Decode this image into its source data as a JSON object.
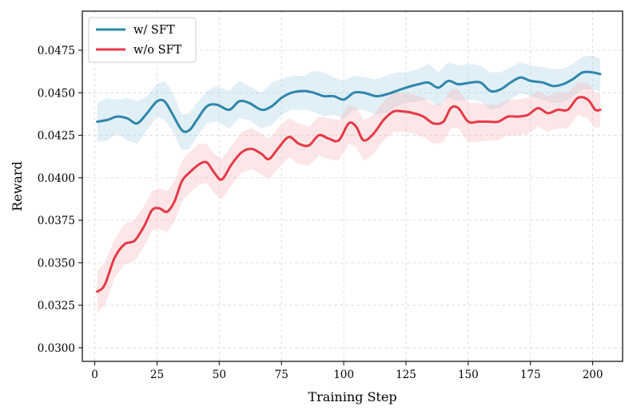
{
  "chart_data": {
    "type": "line",
    "title": "",
    "xlabel": "Training Step",
    "ylabel": "Reward",
    "xlim": [
      -5,
      212
    ],
    "ylim": [
      0.0292,
      0.0498
    ],
    "xticks": [
      0,
      25,
      50,
      75,
      100,
      125,
      150,
      175,
      200
    ],
    "yticks": [
      0.03,
      0.0325,
      0.035,
      0.0375,
      0.04,
      0.0425,
      0.045,
      0.0475
    ],
    "xtick_labels": [
      "0",
      "25",
      "50",
      "75",
      "100",
      "125",
      "150",
      "175",
      "200"
    ],
    "ytick_labels": [
      "0.0300",
      "0.0325",
      "0.0350",
      "0.0375",
      "0.0400",
      "0.0425",
      "0.0450",
      "0.0475"
    ],
    "grid": true,
    "legend_position": "top-left",
    "series": [
      {
        "name": "w/ SFT",
        "color": "#2E86AB",
        "band_color": "#A8D0E6",
        "x": [
          1,
          5,
          9,
          13,
          17,
          21,
          25,
          28,
          31,
          35,
          38,
          41,
          45,
          49,
          54,
          58,
          62,
          67,
          71,
          75,
          79,
          84,
          88,
          92,
          96,
          100,
          104,
          108,
          113,
          117,
          121,
          125,
          130,
          134,
          138,
          142,
          146,
          151,
          155,
          159,
          163,
          167,
          171,
          175,
          180,
          184,
          188,
          192,
          196,
          200,
          203
        ],
        "values": [
          0.0433,
          0.0434,
          0.0436,
          0.0435,
          0.0432,
          0.0438,
          0.0445,
          0.0445,
          0.0438,
          0.0428,
          0.0428,
          0.0434,
          0.0442,
          0.0443,
          0.044,
          0.0445,
          0.0444,
          0.044,
          0.0442,
          0.0447,
          0.045,
          0.0451,
          0.045,
          0.0448,
          0.0448,
          0.0446,
          0.045,
          0.045,
          0.0448,
          0.0449,
          0.0451,
          0.0453,
          0.0455,
          0.0456,
          0.0453,
          0.0457,
          0.0455,
          0.0456,
          0.0456,
          0.0451,
          0.0452,
          0.0456,
          0.0459,
          0.0457,
          0.0456,
          0.0454,
          0.0455,
          0.0458,
          0.0462,
          0.0462,
          0.0461
        ],
        "upper": [
          0.0444,
          0.0447,
          0.0446,
          0.0447,
          0.0445,
          0.0448,
          0.0455,
          0.0457,
          0.0451,
          0.0437,
          0.0438,
          0.0444,
          0.0451,
          0.0454,
          0.0451,
          0.0457,
          0.0454,
          0.045,
          0.0456,
          0.0458,
          0.046,
          0.046,
          0.0463,
          0.0462,
          0.0459,
          0.0457,
          0.046,
          0.0459,
          0.0458,
          0.046,
          0.0462,
          0.0462,
          0.0464,
          0.0467,
          0.0462,
          0.0468,
          0.0466,
          0.0467,
          0.0466,
          0.0462,
          0.0462,
          0.0465,
          0.0468,
          0.0466,
          0.0465,
          0.0464,
          0.0464,
          0.0467,
          0.0471,
          0.0472,
          0.047
        ],
        "lower": [
          0.0421,
          0.0422,
          0.0426,
          0.0422,
          0.042,
          0.0428,
          0.0436,
          0.0434,
          0.0428,
          0.0416,
          0.0417,
          0.0424,
          0.0432,
          0.0433,
          0.0429,
          0.0435,
          0.0434,
          0.0429,
          0.0431,
          0.0437,
          0.044,
          0.044,
          0.0439,
          0.0436,
          0.0437,
          0.0435,
          0.044,
          0.044,
          0.0437,
          0.0438,
          0.0442,
          0.0444,
          0.0445,
          0.0446,
          0.0442,
          0.0447,
          0.0445,
          0.0446,
          0.0445,
          0.044,
          0.0441,
          0.0446,
          0.045,
          0.0448,
          0.0446,
          0.0444,
          0.0444,
          0.0448,
          0.0452,
          0.0452,
          0.0451
        ]
      },
      {
        "name": "w/o SFT",
        "color": "#E63946",
        "band_color": "#F7B7BE",
        "x": [
          1,
          4,
          8,
          12,
          16,
          20,
          23,
          26,
          29,
          32,
          35,
          38,
          42,
          45,
          48,
          51,
          55,
          59,
          63,
          67,
          70,
          74,
          78,
          82,
          86,
          90,
          94,
          98,
          102,
          105,
          108,
          112,
          116,
          120,
          124,
          128,
          132,
          136,
          140,
          143,
          146,
          150,
          154,
          158,
          162,
          166,
          170,
          174,
          178,
          182,
          186,
          190,
          194,
          198,
          201,
          203
        ],
        "values": [
          0.0333,
          0.0337,
          0.0353,
          0.0361,
          0.0363,
          0.0372,
          0.0381,
          0.0382,
          0.038,
          0.0386,
          0.0398,
          0.0403,
          0.0408,
          0.0409,
          0.0403,
          0.0399,
          0.0408,
          0.0415,
          0.0417,
          0.0414,
          0.0411,
          0.0418,
          0.0424,
          0.042,
          0.0419,
          0.0425,
          0.0423,
          0.0422,
          0.0432,
          0.043,
          0.0422,
          0.0426,
          0.0434,
          0.0439,
          0.0439,
          0.0438,
          0.0436,
          0.0432,
          0.0433,
          0.0441,
          0.0441,
          0.0433,
          0.0433,
          0.0433,
          0.0433,
          0.0436,
          0.0436,
          0.0437,
          0.0441,
          0.0438,
          0.044,
          0.044,
          0.0447,
          0.0446,
          0.044,
          0.044
        ],
        "upper": [
          0.0345,
          0.035,
          0.0364,
          0.0373,
          0.0375,
          0.0384,
          0.0392,
          0.0394,
          0.0392,
          0.0398,
          0.041,
          0.0415,
          0.042,
          0.042,
          0.0414,
          0.0411,
          0.0419,
          0.0427,
          0.0429,
          0.0426,
          0.0423,
          0.043,
          0.0435,
          0.0432,
          0.043,
          0.0436,
          0.0435,
          0.0434,
          0.0443,
          0.0441,
          0.0434,
          0.0437,
          0.0445,
          0.045,
          0.045,
          0.0449,
          0.0447,
          0.0443,
          0.0444,
          0.0452,
          0.0452,
          0.0444,
          0.0444,
          0.0443,
          0.0443,
          0.0446,
          0.0446,
          0.0447,
          0.0451,
          0.0448,
          0.045,
          0.045,
          0.0456,
          0.0456,
          0.045,
          0.0449
        ],
        "lower": [
          0.0321,
          0.0325,
          0.0341,
          0.0349,
          0.0351,
          0.036,
          0.0369,
          0.037,
          0.0368,
          0.0374,
          0.0386,
          0.0391,
          0.0396,
          0.0397,
          0.0391,
          0.0387,
          0.0396,
          0.0403,
          0.0405,
          0.0402,
          0.0399,
          0.0406,
          0.0412,
          0.0408,
          0.0407,
          0.0413,
          0.0411,
          0.041,
          0.042,
          0.0418,
          0.041,
          0.0414,
          0.0422,
          0.0427,
          0.0427,
          0.0426,
          0.0424,
          0.042,
          0.0421,
          0.0429,
          0.0429,
          0.0421,
          0.0421,
          0.0422,
          0.0422,
          0.0425,
          0.0425,
          0.0426,
          0.043,
          0.0427,
          0.0429,
          0.0429,
          0.0437,
          0.0435,
          0.0429,
          0.043
        ]
      }
    ]
  }
}
